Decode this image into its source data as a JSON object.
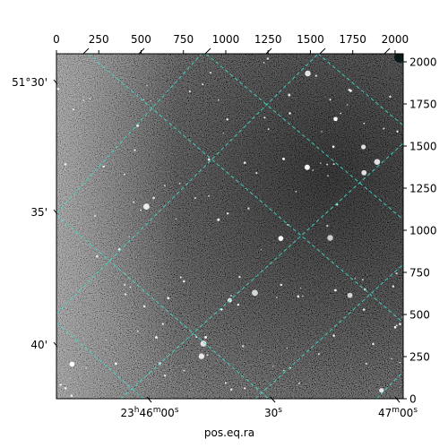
{
  "chart_data": {
    "type": "image",
    "title": "",
    "xlabel": "pos.eq.ra",
    "ylabel": "",
    "pixel_axes": {
      "x": {
        "range": [
          0,
          2048
        ],
        "ticks": [
          0,
          250,
          500,
          750,
          1000,
          1250,
          1500,
          1750,
          2000
        ],
        "position": "top"
      },
      "y": {
        "range": [
          0,
          2048
        ],
        "ticks": [
          0,
          250,
          500,
          750,
          1000,
          1250,
          1500,
          1750,
          2000
        ],
        "position": "right"
      }
    },
    "world_axes": {
      "ra": {
        "label": "pos.eq.ra",
        "ticks": [
          {
            "label_main": "23",
            "sup1": "h",
            "mid": "46",
            "sup2": "m",
            "end": "00",
            "sup3": "s",
            "value_s": 0
          },
          {
            "label_main": "30",
            "sup3": "s",
            "value_s": 30
          },
          {
            "label_main": "47",
            "sup2": "m",
            "end": "00",
            "sup3": "s",
            "value_s": 60
          }
        ]
      },
      "dec": {
        "ticks": [
          {
            "label": "51°30'",
            "value_arcmin": 30
          },
          {
            "label": "35'",
            "value_arcmin": 35
          },
          {
            "label": "40'",
            "value_arcmin": 40
          }
        ]
      }
    },
    "grid": true,
    "grid_color": "#40e0d0",
    "colormap": "gray"
  }
}
